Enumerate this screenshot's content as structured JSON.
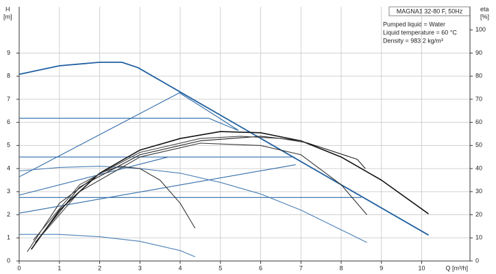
{
  "chart_data": {
    "type": "line",
    "title": "MAGNA1 32-80 F, 50Hz",
    "info": [
      "Pumped liquid = Water",
      "Liquid temperature = 60 °C",
      "Density = 983.2 kg/m³"
    ],
    "y_label": [
      "H",
      "[m]"
    ],
    "y2_label": [
      "eta",
      "[%]"
    ],
    "x_label": "Q [m³/h]",
    "xlim": [
      0,
      11.2
    ],
    "ylim": [
      0,
      11
    ],
    "y2lim": [
      0,
      110
    ],
    "xticks": [
      0,
      1,
      2,
      3,
      4,
      5,
      6,
      7,
      8,
      9,
      10
    ],
    "yticks": [
      0,
      1,
      2,
      3,
      4,
      5,
      6,
      7,
      8,
      9
    ],
    "y2ticks": [
      0,
      10,
      20,
      30,
      40,
      50,
      60,
      70,
      80,
      90,
      100
    ],
    "grid": true,
    "series": [
      {
        "color": "#1f5fa0",
        "width": 1.8,
        "x": [
          0,
          1,
          2,
          2.55,
          2.95,
          10.17
        ],
        "values": [
          8.08,
          8.45,
          8.6,
          8.6,
          8.37,
          1.12
        ]
      },
      {
        "color": "#2e6aa8",
        "width": 1.1,
        "x": [
          0,
          3.98,
          4.6,
          5.45
        ],
        "values": [
          3.64,
          7.28,
          6.6,
          5.65
        ]
      },
      {
        "color": "#2e6aa8",
        "width": 1.1,
        "x": [
          0,
          4.71,
          5.44
        ],
        "values": [
          6.18,
          6.18,
          5.65
        ]
      },
      {
        "color": "#2e6aa8",
        "width": 1.1,
        "x": [
          0,
          6.84
        ],
        "values": [
          4.5,
          4.5
        ]
      },
      {
        "color": "#2e6aa8",
        "width": 1.1,
        "x": [
          0,
          8.5
        ],
        "values": [
          2.75,
          2.75
        ]
      },
      {
        "color": "#2e6aa8",
        "width": 1.1,
        "x": [
          0,
          6.87
        ],
        "values": [
          2.07,
          4.17
        ]
      },
      {
        "color": "#2e6aa8",
        "width": 1.1,
        "x": [
          0,
          3.7
        ],
        "values": [
          2.85,
          4.5
        ]
      },
      {
        "color": "#4a7eb5",
        "width": 1.1,
        "x": [
          0,
          1,
          2,
          3,
          4,
          5,
          6,
          7,
          8,
          8.64
        ],
        "values": [
          3.9,
          4.05,
          4.1,
          4.0,
          3.8,
          3.4,
          2.9,
          2.2,
          1.35,
          0.8
        ]
      },
      {
        "color": "#4a7eb5",
        "width": 1.1,
        "x": [
          0,
          1,
          2,
          3,
          4,
          4.37
        ],
        "values": [
          1.15,
          1.15,
          1.05,
          0.85,
          0.45,
          0.18
        ]
      },
      {
        "color": "#111111",
        "width": 1.6,
        "axis": "y2",
        "x": [
          0.3,
          1,
          2,
          3,
          4,
          5,
          6,
          7,
          8,
          9,
          10.17
        ],
        "values": [
          5,
          22,
          38,
          48,
          53,
          56,
          55.5,
          52,
          45,
          35,
          20.4
        ]
      },
      {
        "color": "#333333",
        "width": 1.1,
        "axis": "y2",
        "x": [
          0.2,
          1,
          2,
          2.5,
          3,
          3.5,
          4,
          4.37
        ],
        "values": [
          4,
          25,
          38,
          41,
          40,
          35,
          25,
          14.2
        ]
      },
      {
        "color": "#333333",
        "width": 1.1,
        "axis": "y2",
        "x": [
          0.5,
          1.5,
          3,
          4.5,
          6,
          7,
          8,
          8.64
        ],
        "values": [
          10,
          30,
          45,
          51,
          50,
          46,
          33,
          20
        ]
      },
      {
        "color": "#222222",
        "width": 1.1,
        "axis": "y2",
        "x": [
          0.4,
          1.5,
          3,
          4.5,
          6,
          7,
          8.4,
          8.6
        ],
        "values": [
          8,
          32,
          46,
          52,
          54,
          52,
          44,
          40
        ]
      },
      {
        "color": "#444444",
        "width": 1.1,
        "axis": "y2",
        "x": [
          0.35,
          1.5,
          3,
          4.5,
          5.5,
          6.5,
          7.2
        ],
        "values": [
          9,
          33,
          47,
          53,
          54,
          53,
          51
        ]
      }
    ]
  }
}
